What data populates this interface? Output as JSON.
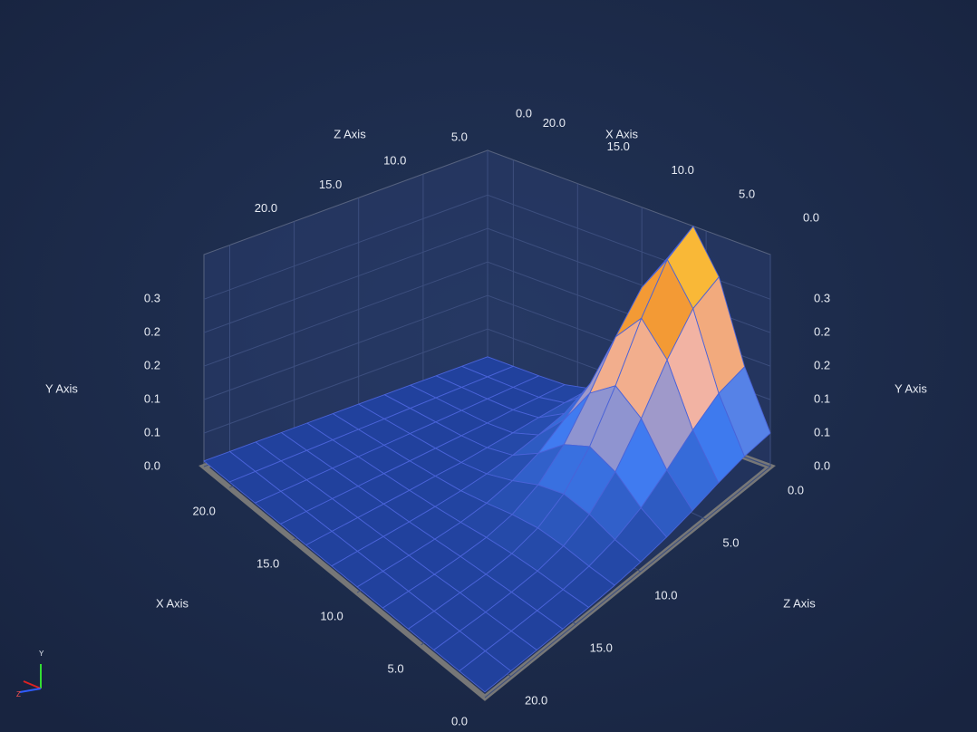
{
  "chart_data": {
    "type": "surface",
    "x_label": "X Axis",
    "y_label": "Y Axis",
    "z_label": "Z Axis",
    "x": [
      0,
      2,
      4,
      6,
      8,
      10,
      12,
      14,
      16,
      18,
      20,
      22
    ],
    "z": [
      0,
      2,
      4,
      6,
      8,
      10,
      12,
      14,
      16,
      18,
      20,
      22
    ],
    "values": [
      [
        0.06,
        0.056,
        0.046,
        0.034,
        0.024,
        0.017,
        0.013,
        0.011,
        0.01,
        0.01,
        0.01,
        0.01
      ],
      [
        0.162,
        0.15,
        0.12,
        0.084,
        0.052,
        0.031,
        0.019,
        0.013,
        0.011,
        0.01,
        0.01,
        0.01
      ],
      [
        0.306,
        0.283,
        0.225,
        0.154,
        0.092,
        0.05,
        0.027,
        0.016,
        0.012,
        0.01,
        0.01,
        0.01
      ],
      [
        0.38,
        0.352,
        0.279,
        0.19,
        0.113,
        0.06,
        0.031,
        0.017,
        0.012,
        0.011,
        0.01,
        0.01
      ],
      [
        0.306,
        0.283,
        0.225,
        0.154,
        0.092,
        0.05,
        0.027,
        0.016,
        0.012,
        0.01,
        0.01,
        0.01
      ],
      [
        0.162,
        0.15,
        0.12,
        0.084,
        0.052,
        0.031,
        0.019,
        0.013,
        0.011,
        0.01,
        0.01,
        0.01
      ],
      [
        0.06,
        0.056,
        0.046,
        0.034,
        0.024,
        0.017,
        0.013,
        0.011,
        0.01,
        0.01,
        0.01,
        0.01
      ],
      [
        0.021,
        0.02,
        0.018,
        0.015,
        0.013,
        0.011,
        0.011,
        0.01,
        0.01,
        0.01,
        0.01,
        0.01
      ],
      [
        0.011,
        0.011,
        0.011,
        0.01,
        0.01,
        0.01,
        0.01,
        0.01,
        0.01,
        0.01,
        0.01,
        0.01
      ],
      [
        0.01,
        0.01,
        0.01,
        0.01,
        0.01,
        0.01,
        0.01,
        0.01,
        0.01,
        0.01,
        0.01,
        0.01
      ],
      [
        0.01,
        0.01,
        0.01,
        0.01,
        0.01,
        0.01,
        0.01,
        0.01,
        0.01,
        0.01,
        0.01,
        0.01
      ],
      [
        0.01,
        0.01,
        0.01,
        0.01,
        0.01,
        0.01,
        0.01,
        0.01,
        0.01,
        0.01,
        0.01,
        0.01
      ]
    ],
    "xlim": [
      0,
      22
    ],
    "zlim": [
      0,
      22
    ],
    "ylim": [
      0,
      0.38
    ],
    "xticks": [
      {
        "value": 0,
        "label": "0.0"
      },
      {
        "value": 5,
        "label": "5.0"
      },
      {
        "value": 10,
        "label": "10.0"
      },
      {
        "value": 15,
        "label": "15.0"
      },
      {
        "value": 20,
        "label": "20.0"
      }
    ],
    "zticks": [
      {
        "value": 0,
        "label": "0.0"
      },
      {
        "value": 5,
        "label": "5.0"
      },
      {
        "value": 10,
        "label": "10.0"
      },
      {
        "value": 15,
        "label": "15.0"
      },
      {
        "value": 20,
        "label": "20.0"
      }
    ],
    "yticks": [
      {
        "value": 0,
        "label": "0.0"
      },
      {
        "value": 0.06,
        "label": "0.1"
      },
      {
        "value": 0.12,
        "label": "0.1"
      },
      {
        "value": 0.18,
        "label": "0.2"
      },
      {
        "value": 0.24,
        "label": "0.2"
      },
      {
        "value": 0.3,
        "label": "0.3"
      }
    ],
    "grid": true,
    "colorscale": [
      "#1d3a93",
      "#3f7bf0",
      "#f2b4a8",
      "#f39a35",
      "#ffd83a"
    ],
    "mesh_color": "#4a63d8",
    "gizmo_labels": [
      "Y",
      "Z"
    ]
  }
}
